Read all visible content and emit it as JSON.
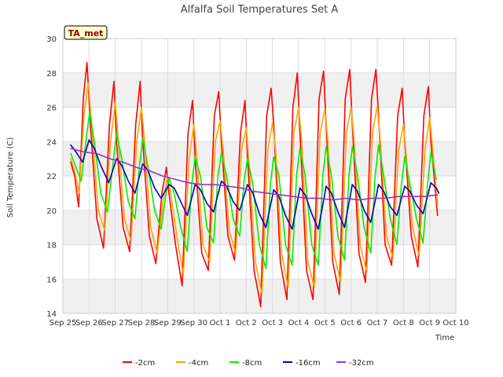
{
  "chart_data": {
    "type": "line",
    "title": "Alfalfa Soil Temperatures Set A",
    "xlabel": "Time",
    "ylabel": "Soil Temperature (C)",
    "site_tag": "TA_met",
    "xlim": [
      0,
      15
    ],
    "ylim": [
      14,
      30
    ],
    "x_ticks": [
      {
        "label": "Sep 25",
        "value": 0
      },
      {
        "label": "Sep 26",
        "value": 1
      },
      {
        "label": "Sep 27",
        "value": 2
      },
      {
        "label": "Sep 28",
        "value": 3
      },
      {
        "label": "Sep 29",
        "value": 4
      },
      {
        "label": "Sep 30",
        "value": 5
      },
      {
        "label": "Oct 1",
        "value": 6
      },
      {
        "label": "Oct 2",
        "value": 7
      },
      {
        "label": "Oct 3",
        "value": 8
      },
      {
        "label": "Oct 4",
        "value": 9
      },
      {
        "label": "Oct 5",
        "value": 10
      },
      {
        "label": "Oct 6",
        "value": 11
      },
      {
        "label": "Oct 7",
        "value": 12
      },
      {
        "label": "Oct 8",
        "value": 13
      },
      {
        "label": "Oct 9",
        "value": 14
      },
      {
        "label": "Oct 10",
        "value": 15
      }
    ],
    "y_ticks": [
      14,
      16,
      18,
      20,
      22,
      24,
      26,
      28,
      30
    ],
    "grid": true,
    "legend_position": "bottom",
    "series": [
      {
        "name": "-2cm",
        "color": "#ff0000",
        "x": [
          0.3,
          0.45,
          0.6,
          0.78,
          0.92,
          1.05,
          1.3,
          1.55,
          1.78,
          1.95,
          2.05,
          2.3,
          2.55,
          2.78,
          2.95,
          3.05,
          3.3,
          3.55,
          3.78,
          3.95,
          4.05,
          4.3,
          4.55,
          4.78,
          4.95,
          5.05,
          5.3,
          5.55,
          5.78,
          5.95,
          6.05,
          6.3,
          6.55,
          6.78,
          6.95,
          7.05,
          7.3,
          7.55,
          7.78,
          7.95,
          8.05,
          8.3,
          8.55,
          8.78,
          8.95,
          9.05,
          9.3,
          9.55,
          9.78,
          9.95,
          10.05,
          10.3,
          10.55,
          10.78,
          10.95,
          11.05,
          11.3,
          11.55,
          11.78,
          11.95,
          12.05,
          12.3,
          12.55,
          12.78,
          12.95,
          13.05,
          13.3,
          13.55,
          13.78,
          13.95,
          14.05,
          14.3
        ],
        "values": [
          22.8,
          22.0,
          20.2,
          26.5,
          28.6,
          25.0,
          19.5,
          17.8,
          25.0,
          27.5,
          24.0,
          19.0,
          17.6,
          25.0,
          27.5,
          24.0,
          18.5,
          16.9,
          21.0,
          22.5,
          21.0,
          18.0,
          15.6,
          24.5,
          26.4,
          23.0,
          17.5,
          16.5,
          25.5,
          26.9,
          24.0,
          18.5,
          17.1,
          24.5,
          26.4,
          23.0,
          16.5,
          14.4,
          25.5,
          27.1,
          25.0,
          17.0,
          14.8,
          26.0,
          28.0,
          24.5,
          16.5,
          14.8,
          26.5,
          28.1,
          25.0,
          17.0,
          15.1,
          26.5,
          28.2,
          25.0,
          17.5,
          15.8,
          26.5,
          28.2,
          25.5,
          18.0,
          16.8,
          25.5,
          27.1,
          24.0,
          18.5,
          16.7,
          25.5,
          27.2,
          24.0,
          19.7
        ]
      },
      {
        "name": "-4cm",
        "color": "#ffa500",
        "x": [
          0.3,
          0.45,
          0.62,
          0.8,
          0.97,
          1.1,
          1.35,
          1.6,
          1.82,
          2.0,
          2.12,
          2.35,
          2.6,
          2.82,
          3.0,
          3.12,
          3.35,
          3.6,
          3.82,
          4.0,
          4.12,
          4.35,
          4.6,
          4.82,
          5.0,
          5.12,
          5.35,
          5.6,
          5.82,
          6.0,
          6.12,
          6.35,
          6.6,
          6.82,
          7.0,
          7.12,
          7.35,
          7.6,
          7.82,
          8.0,
          8.12,
          8.35,
          8.6,
          8.82,
          9.0,
          9.12,
          9.35,
          9.6,
          9.82,
          10.0,
          10.12,
          10.35,
          10.6,
          10.82,
          11.0,
          11.12,
          11.35,
          11.6,
          11.82,
          12.0,
          12.12,
          12.35,
          12.6,
          12.82,
          13.0,
          13.12,
          13.35,
          13.6,
          13.82,
          14.0,
          14.12,
          14.3
        ],
        "values": [
          23.0,
          22.3,
          21.0,
          25.5,
          27.4,
          25.0,
          20.0,
          18.8,
          24.0,
          26.3,
          24.0,
          19.5,
          18.2,
          24.0,
          26.0,
          24.0,
          19.0,
          17.5,
          20.5,
          22.0,
          21.0,
          18.5,
          16.2,
          23.0,
          25.0,
          23.0,
          18.0,
          17.0,
          24.0,
          25.2,
          23.5,
          18.8,
          17.5,
          23.5,
          24.8,
          22.5,
          17.0,
          15.1,
          23.5,
          25.1,
          23.5,
          17.5,
          15.5,
          24.5,
          26.0,
          24.0,
          17.0,
          15.5,
          24.5,
          25.9,
          24.0,
          17.5,
          15.8,
          24.5,
          26.0,
          24.0,
          18.0,
          16.4,
          24.5,
          26.1,
          24.0,
          18.5,
          17.2,
          23.5,
          25.0,
          23.0,
          19.0,
          17.3,
          23.5,
          25.4,
          23.5,
          20.3
        ]
      },
      {
        "name": "-8cm",
        "color": "#00ee00",
        "x": [
          0.3,
          0.5,
          0.7,
          0.88,
          1.02,
          1.2,
          1.45,
          1.7,
          1.9,
          2.05,
          2.25,
          2.5,
          2.75,
          2.92,
          3.05,
          3.25,
          3.5,
          3.75,
          3.92,
          4.05,
          4.25,
          4.5,
          4.75,
          4.92,
          5.05,
          5.25,
          5.5,
          5.75,
          5.92,
          6.05,
          6.25,
          6.5,
          6.75,
          6.92,
          7.05,
          7.25,
          7.5,
          7.75,
          7.92,
          8.05,
          8.25,
          8.5,
          8.75,
          8.92,
          9.05,
          9.25,
          9.5,
          9.75,
          9.92,
          10.05,
          10.25,
          10.5,
          10.75,
          10.92,
          11.05,
          11.25,
          11.5,
          11.75,
          11.92,
          12.05,
          12.25,
          12.5,
          12.75,
          12.92,
          13.05,
          13.25,
          13.5,
          13.75,
          13.92,
          14.05,
          14.25
        ],
        "values": [
          23.3,
          22.5,
          21.7,
          24.0,
          25.7,
          24.0,
          21.0,
          19.9,
          22.5,
          24.5,
          23.0,
          20.5,
          19.5,
          22.5,
          24.2,
          22.5,
          20.0,
          18.9,
          20.8,
          21.9,
          21.0,
          19.0,
          17.6,
          21.5,
          23.1,
          22.0,
          19.0,
          18.1,
          22.0,
          23.3,
          22.0,
          19.5,
          18.5,
          21.8,
          23.0,
          21.5,
          18.0,
          16.6,
          21.5,
          23.1,
          22.0,
          18.0,
          16.8,
          22.0,
          23.6,
          22.0,
          18.0,
          16.8,
          22.0,
          23.7,
          22.0,
          18.5,
          17.1,
          22.0,
          23.7,
          22.0,
          19.0,
          17.5,
          22.0,
          23.8,
          22.0,
          19.5,
          18.0,
          21.5,
          23.1,
          21.5,
          19.5,
          18.1,
          21.5,
          23.4,
          21.8
        ]
      },
      {
        "name": "-16cm",
        "color": "#0000cc",
        "x": [
          0.3,
          0.5,
          0.75,
          1.0,
          1.2,
          1.45,
          1.75,
          2.05,
          2.25,
          2.5,
          2.75,
          3.05,
          3.25,
          3.5,
          3.75,
          4.05,
          4.25,
          4.5,
          4.75,
          5.05,
          5.25,
          5.5,
          5.75,
          6.05,
          6.25,
          6.5,
          6.75,
          7.05,
          7.25,
          7.5,
          7.75,
          8.05,
          8.25,
          8.5,
          8.75,
          9.05,
          9.25,
          9.5,
          9.75,
          10.05,
          10.25,
          10.5,
          10.75,
          11.05,
          11.25,
          11.5,
          11.75,
          12.05,
          12.25,
          12.5,
          12.75,
          13.05,
          13.25,
          13.5,
          13.75,
          14.05,
          14.25,
          14.35
        ],
        "values": [
          23.8,
          23.4,
          22.8,
          24.1,
          23.6,
          22.6,
          21.6,
          23.0,
          22.6,
          21.7,
          21.0,
          22.7,
          22.3,
          21.3,
          20.7,
          21.5,
          21.3,
          20.5,
          19.7,
          21.5,
          21.2,
          20.4,
          19.9,
          21.7,
          21.4,
          20.5,
          20.0,
          21.5,
          21.0,
          19.8,
          19.0,
          21.2,
          20.8,
          19.7,
          18.9,
          21.3,
          20.9,
          19.8,
          18.9,
          21.4,
          21.0,
          19.9,
          19.0,
          21.5,
          21.1,
          20.0,
          19.3,
          21.5,
          21.1,
          20.2,
          19.7,
          21.4,
          21.1,
          20.3,
          19.8,
          21.6,
          21.3,
          21.0
        ]
      },
      {
        "name": "-32cm",
        "color": "#9932cc",
        "x": [
          0.3,
          0.8,
          1.3,
          1.8,
          2.3,
          2.8,
          3.3,
          3.8,
          4.3,
          4.8,
          5.3,
          5.8,
          6.3,
          6.8,
          7.3,
          7.8,
          8.3,
          8.8,
          9.3,
          9.8,
          10.3,
          10.8,
          11.3,
          11.8,
          12.3,
          12.8,
          13.3,
          13.8,
          14.3
        ],
        "values": [
          23.6,
          23.4,
          23.3,
          23.0,
          22.8,
          22.5,
          22.3,
          22.0,
          21.8,
          21.6,
          21.5,
          21.5,
          21.4,
          21.3,
          21.1,
          21.0,
          20.9,
          20.8,
          20.7,
          20.7,
          20.6,
          20.7,
          20.6,
          20.7,
          20.7,
          20.8,
          20.8,
          20.8,
          20.9
        ]
      }
    ]
  }
}
